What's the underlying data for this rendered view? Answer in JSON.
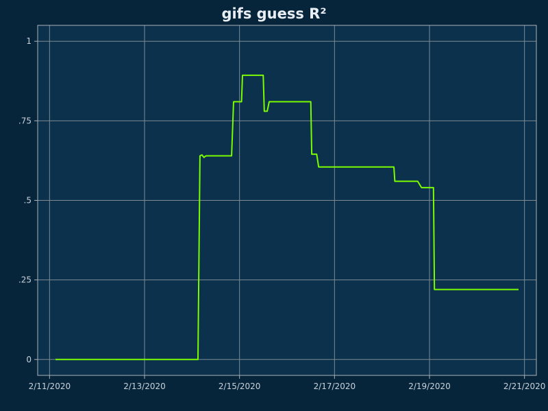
{
  "chart_data": {
    "type": "line",
    "title": "gifs guess R²",
    "xlabel": "",
    "ylabel": "",
    "colors": {
      "background": "#06243a",
      "plot_background": "#0b314d",
      "line": "#7cfc00"
    },
    "xlim": [
      "2020-02-10T18:00",
      "2020-02-21T06:00"
    ],
    "ylim": [
      -0.05,
      1.05
    ],
    "grid": true,
    "legend": "none",
    "x_ticks": [
      {
        "value": "2020-02-11",
        "label": "2/11/2020"
      },
      {
        "value": "2020-02-13",
        "label": "2/13/2020"
      },
      {
        "value": "2020-02-15",
        "label": "2/15/2020"
      },
      {
        "value": "2020-02-17",
        "label": "2/17/2020"
      },
      {
        "value": "2020-02-19",
        "label": "2/19/2020"
      },
      {
        "value": "2020-02-21",
        "label": "2/21/2020"
      }
    ],
    "y_ticks": [
      {
        "value": 0,
        "label": "0"
      },
      {
        "value": 0.25,
        "label": ".25"
      },
      {
        "value": 0.5,
        "label": ".5"
      },
      {
        "value": 0.75,
        "label": ".75"
      },
      {
        "value": 1,
        "label": "1"
      }
    ],
    "series": [
      {
        "points": [
          [
            "2020-02-11T03:00",
            0.0
          ],
          [
            "2020-02-14T03:00",
            0.0
          ],
          [
            "2020-02-14T04:00",
            0.64
          ],
          [
            "2020-02-14T05:00",
            0.643
          ],
          [
            "2020-02-14T06:00",
            0.635
          ],
          [
            "2020-02-14T07:00",
            0.64
          ],
          [
            "2020-02-14T20:00",
            0.64
          ],
          [
            "2020-02-14T21:00",
            0.81
          ],
          [
            "2020-02-15T01:00",
            0.81
          ],
          [
            "2020-02-15T01:30",
            0.893
          ],
          [
            "2020-02-15T12:00",
            0.893
          ],
          [
            "2020-02-15T12:30",
            0.78
          ],
          [
            "2020-02-15T14:00",
            0.78
          ],
          [
            "2020-02-15T15:00",
            0.81
          ],
          [
            "2020-02-16T12:00",
            0.81
          ],
          [
            "2020-02-16T12:30",
            0.645
          ],
          [
            "2020-02-16T15:00",
            0.645
          ],
          [
            "2020-02-16T16:00",
            0.605
          ],
          [
            "2020-02-18T06:00",
            0.605
          ],
          [
            "2020-02-18T06:30",
            0.56
          ],
          [
            "2020-02-18T18:00",
            0.56
          ],
          [
            "2020-02-18T20:00",
            0.54
          ],
          [
            "2020-02-19T02:00",
            0.54
          ],
          [
            "2020-02-19T02:30",
            0.22
          ],
          [
            "2020-02-20T21:00",
            0.22
          ]
        ]
      }
    ]
  }
}
